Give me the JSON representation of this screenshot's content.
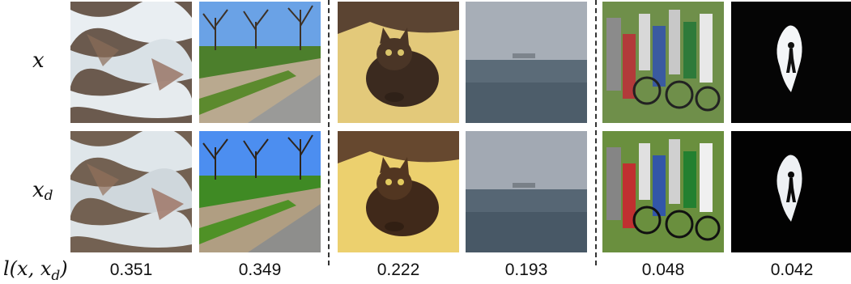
{
  "row_labels": {
    "original": {
      "main": "x",
      "sub": ""
    },
    "distorted": {
      "main": "x",
      "sub": "d"
    },
    "score": {
      "prefix": "l(x, x",
      "sub": "d",
      "suffix": ")"
    }
  },
  "columns": [
    {
      "image_top": "waterfall-rocks",
      "image_bottom": "waterfall-rocks",
      "score": "0.351"
    },
    {
      "image_top": "park-path-trees",
      "image_bottom": "park-path-trees",
      "score": "0.349"
    },
    {
      "image_top": "cat-on-carpet",
      "image_bottom": "cat-on-carpet",
      "score": "0.222"
    },
    {
      "image_top": "foggy-sea-ship",
      "image_bottom": "foggy-sea-ship",
      "score": "0.193"
    },
    {
      "image_top": "crowd-bicycles",
      "image_bottom": "crowd-bicycles",
      "score": "0.048"
    },
    {
      "image_top": "cave-silhouette",
      "image_bottom": "cave-silhouette",
      "score": "0.042"
    }
  ]
}
